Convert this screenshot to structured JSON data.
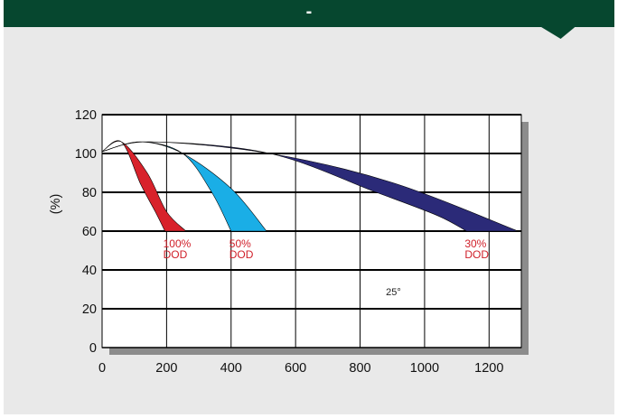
{
  "header": {
    "title": "-"
  },
  "chart_data": {
    "type": "area",
    "title": "",
    "xlabel": "",
    "ylabel": "(%)",
    "xlim": [
      0,
      1300
    ],
    "ylim": [
      0,
      120
    ],
    "xticks": [
      0,
      200,
      400,
      600,
      800,
      1000,
      1200
    ],
    "yticks": [
      0,
      20,
      40,
      60,
      80,
      100,
      120
    ],
    "grid": true,
    "temperature_label": "25°",
    "series": [
      {
        "color": "#d8222b",
        "label_line1": "100%",
        "label_line2": "DOD",
        "upper": [
          [
            0,
            101
          ],
          [
            60,
            106
          ],
          [
            140,
            90
          ],
          [
            200,
            70
          ],
          [
            260,
            60
          ]
        ],
        "lower": [
          [
            0,
            101
          ],
          [
            60,
            106
          ],
          [
            120,
            84
          ],
          [
            165,
            70
          ],
          [
            195,
            60
          ]
        ]
      },
      {
        "color": "#1aaee6",
        "label_line1": "50%",
        "label_line2": "DOD",
        "upper": [
          [
            0,
            101
          ],
          [
            120,
            106
          ],
          [
            250,
            100
          ],
          [
            400,
            82
          ],
          [
            510,
            60
          ]
        ],
        "lower": [
          [
            0,
            101
          ],
          [
            120,
            106
          ],
          [
            250,
            100
          ],
          [
            340,
            80
          ],
          [
            400,
            60
          ]
        ]
      },
      {
        "color": "#2b2a78",
        "label_line1": "30%",
        "label_line2": "DOD",
        "upper": [
          [
            0,
            101
          ],
          [
            150,
            106
          ],
          [
            520,
            100
          ],
          [
            900,
            85
          ],
          [
            1290,
            60
          ]
        ],
        "lower": [
          [
            0,
            101
          ],
          [
            150,
            106
          ],
          [
            520,
            100
          ],
          [
            850,
            80
          ],
          [
            1040,
            68
          ],
          [
            1130,
            60
          ]
        ]
      }
    ]
  }
}
